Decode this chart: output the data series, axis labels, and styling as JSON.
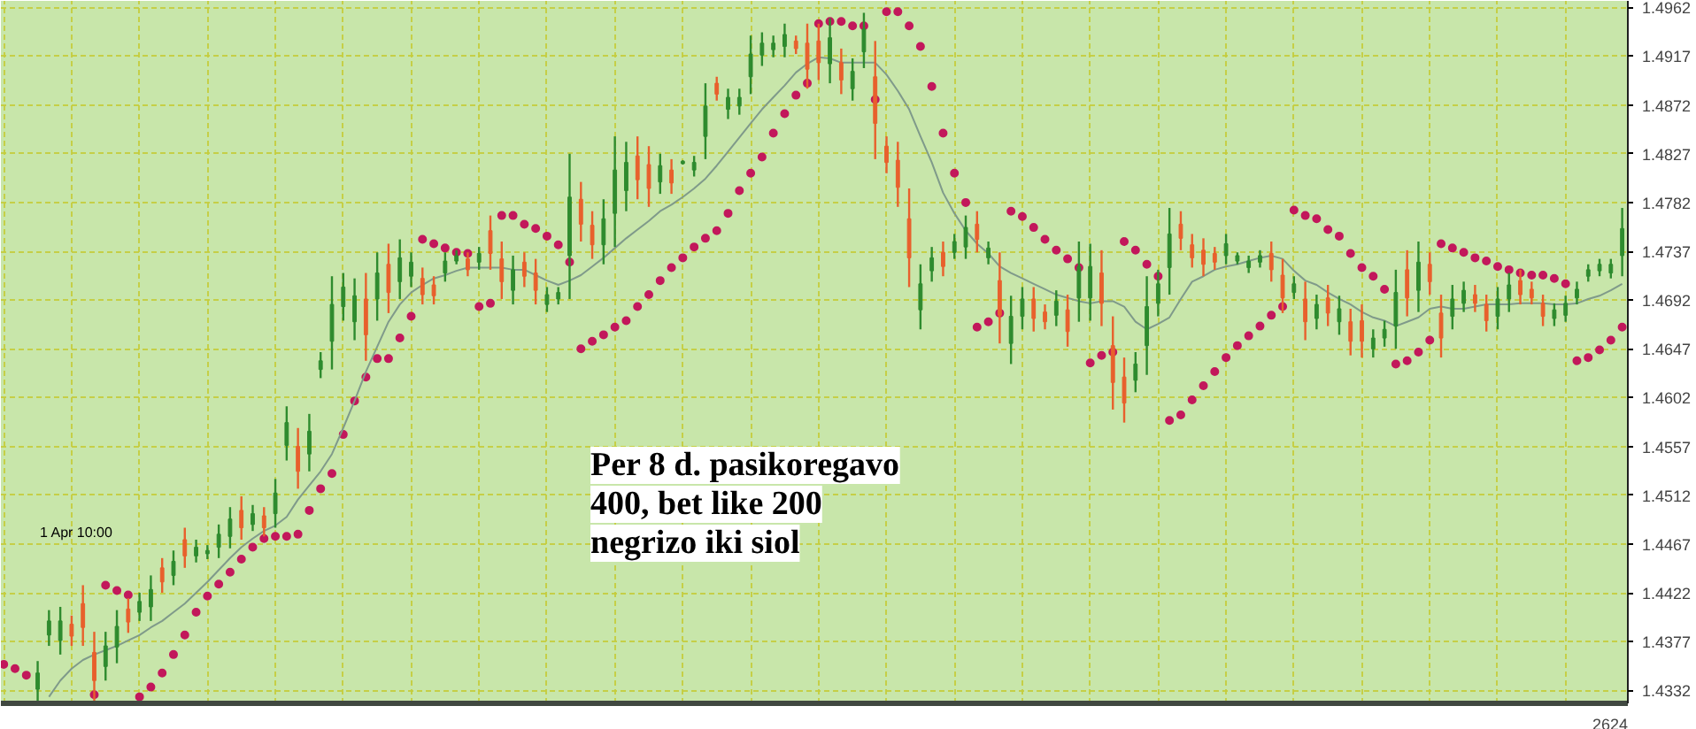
{
  "chart_data": {
    "type": "candlestick",
    "categories": [
      null,
      null,
      null,
      null,
      null,
      null,
      null,
      null,
      null,
      null,
      null,
      null,
      null,
      null,
      null,
      null,
      null,
      null,
      null,
      null,
      null,
      null,
      null,
      null,
      null,
      null,
      null,
      null,
      null,
      null,
      null,
      null,
      null,
      null,
      null,
      null,
      null,
      null,
      null,
      null,
      null,
      null,
      null,
      null,
      null,
      null,
      null,
      null,
      null,
      null,
      null,
      null,
      null,
      null,
      null,
      null,
      null,
      null,
      null,
      null,
      null,
      null,
      null,
      null,
      null,
      null,
      null,
      null,
      null,
      null,
      null,
      null,
      null,
      null,
      null,
      null,
      null,
      null,
      null,
      null,
      null,
      null,
      null,
      null,
      null,
      null,
      null,
      null,
      null,
      null,
      null,
      null,
      null,
      null,
      null,
      null,
      null,
      null,
      null,
      null,
      null,
      null,
      null,
      null,
      null,
      null,
      null,
      null,
      null,
      null,
      null,
      null,
      null,
      null,
      null,
      null,
      null,
      null,
      null,
      null,
      null,
      null,
      null,
      null,
      null,
      null,
      null,
      null,
      null,
      null,
      null,
      null,
      null,
      null,
      null,
      null,
      null,
      null,
      null,
      null,
      null,
      null,
      null,
      null
    ],
    "ylim": [
      1.432,
      1.4968
    ],
    "yticks": [
      1.4332,
      1.4377,
      1.4422,
      1.4467,
      1.4512,
      1.4557,
      1.4602,
      1.4647,
      1.4692,
      1.4737,
      1.4782,
      1.4827,
      1.4872,
      1.4917,
      1.4962
    ],
    "grid": true,
    "tick_labels": "y",
    "annotations": [
      "Per 8 d. pasikoregavo\n400, bet like 200\nnegrizo iki siol",
      "1 Apr 10:00",
      "2624"
    ],
    "series": [
      {
        "ohlc": [
          null,
          null,
          null,
          [
            1.4333,
            1.4359,
            1.4322,
            1.4348
          ],
          [
            1.4383,
            1.4406,
            1.4373,
            1.4396
          ],
          [
            1.4378,
            1.4409,
            1.4365,
            1.4396
          ],
          [
            1.4393,
            1.4401,
            1.4373,
            1.4382
          ],
          [
            1.4412,
            1.4429,
            1.4373,
            1.439
          ],
          [
            1.4367,
            1.4386,
            1.4322,
            1.4341
          ],
          [
            1.4354,
            1.4386,
            1.4341,
            1.4373
          ],
          [
            1.4372,
            1.4406,
            1.4357,
            1.4391
          ],
          [
            1.4407,
            1.4417,
            1.4385,
            1.4395
          ],
          [
            1.4404,
            1.4422,
            1.4396,
            1.4414
          ],
          [
            1.4409,
            1.4438,
            1.4396,
            1.4425
          ],
          [
            1.4445,
            1.4454,
            1.4422,
            1.4432
          ],
          [
            1.4438,
            1.4461,
            1.4429,
            1.4451
          ],
          [
            1.4471,
            1.4482,
            1.4445,
            1.4456
          ],
          [
            1.4456,
            1.4471,
            1.445,
            1.4464
          ],
          [
            1.4458,
            1.4466,
            1.4453,
            1.4461
          ],
          [
            1.4464,
            1.4485,
            1.4454,
            1.4476
          ],
          [
            1.4474,
            1.4501,
            1.4463,
            1.449
          ],
          [
            1.4498,
            1.4511,
            1.4471,
            1.4482
          ],
          [
            1.4485,
            1.4503,
            1.4479,
            1.4495
          ],
          [
            1.4493,
            1.4501,
            1.4474,
            1.4482
          ],
          [
            1.4495,
            1.4527,
            1.4482,
            1.4514
          ],
          [
            1.4558,
            1.4594,
            1.4544,
            1.4579
          ],
          [
            1.4557,
            1.4574,
            1.4518,
            1.4534
          ],
          [
            1.455,
            1.4587,
            1.4534,
            1.4571
          ],
          [
            1.4628,
            1.4644,
            1.462,
            1.4636
          ],
          [
            1.4654,
            1.4714,
            1.4628,
            1.4688
          ],
          [
            1.4686,
            1.4717,
            1.4673,
            1.4704
          ],
          [
            1.4672,
            1.4712,
            1.4655,
            1.4696
          ],
          [
            1.4693,
            1.4717,
            1.4636,
            1.466
          ],
          [
            1.4693,
            1.4736,
            1.4673,
            1.4717
          ],
          [
            1.4725,
            1.4744,
            1.468,
            1.4699
          ],
          [
            1.4709,
            1.4748,
            1.4693,
            1.4731
          ],
          [
            1.4714,
            1.4736,
            1.4704,
            1.4727
          ],
          [
            1.4712,
            1.4722,
            1.4688,
            1.4697
          ],
          [
            1.4706,
            1.4714,
            1.4688,
            1.4696
          ],
          [
            1.4717,
            1.4736,
            1.4709,
            1.4728
          ],
          [
            1.4728,
            1.4738,
            1.4725,
            1.4733
          ],
          [
            1.473,
            1.4736,
            1.4714,
            1.472
          ],
          [
            1.4727,
            1.4741,
            1.472,
            1.4735
          ],
          [
            1.4756,
            1.477,
            1.472,
            1.4735
          ],
          [
            1.473,
            1.4746,
            1.4693,
            1.4709
          ],
          [
            1.4701,
            1.4733,
            1.4688,
            1.472
          ],
          [
            1.4727,
            1.4736,
            1.4704,
            1.4714
          ],
          [
            1.4717,
            1.473,
            1.4688,
            1.4701
          ],
          [
            1.4688,
            1.4704,
            1.4681,
            1.4697
          ],
          [
            1.4693,
            1.4704,
            1.4688,
            1.4699
          ],
          [
            1.4733,
            1.4827,
            1.4693,
            1.4787
          ],
          [
            1.4785,
            1.4801,
            1.4746,
            1.4762
          ],
          [
            1.4761,
            1.4774,
            1.473,
            1.4743
          ],
          [
            1.4743,
            1.4785,
            1.4725,
            1.4767
          ],
          [
            1.4772,
            1.4843,
            1.4741,
            1.4812
          ],
          [
            1.4793,
            1.4838,
            1.4774,
            1.4819
          ],
          [
            1.4825,
            1.4843,
            1.4785,
            1.4803
          ],
          [
            1.4817,
            1.4834,
            1.4778,
            1.4795
          ],
          [
            1.4801,
            1.4827,
            1.479,
            1.4816
          ],
          [
            1.4812,
            1.4822,
            1.479,
            1.48
          ],
          [
            1.4818,
            1.4821,
            1.4817,
            1.482
          ],
          [
            1.4812,
            1.4825,
            1.4806,
            1.4819
          ],
          [
            1.4843,
            1.4892,
            1.4822,
            1.4871
          ],
          [
            1.4892,
            1.4898,
            1.4876,
            1.4882
          ],
          [
            1.4868,
            1.4887,
            1.4859,
            1.4879
          ],
          [
            1.4871,
            1.4887,
            1.4863,
            1.4879
          ],
          [
            1.4898,
            1.4936,
            1.4882,
            1.4919
          ],
          [
            1.4918,
            1.4939,
            1.4908,
            1.4929
          ],
          [
            1.4923,
            1.4936,
            1.4916,
            1.4929
          ],
          [
            1.4926,
            1.4947,
            1.4916,
            1.4937
          ],
          [
            1.4931,
            1.4936,
            1.4919,
            1.4924
          ],
          [
            1.4929,
            1.4947,
            1.4887,
            1.4905
          ],
          [
            1.4931,
            1.4947,
            1.4895,
            1.4911
          ],
          [
            1.491,
            1.4952,
            1.4892,
            1.4934
          ],
          [
            1.4911,
            1.4924,
            1.4882,
            1.4895
          ],
          [
            1.4887,
            1.4915,
            1.4876,
            1.4903
          ],
          [
            1.4921,
            1.4957,
            1.4906,
            1.4942
          ],
          [
            1.4898,
            1.4931,
            1.4822,
            1.4855
          ],
          [
            1.4834,
            1.4843,
            1.4809,
            1.4819
          ],
          [
            1.4821,
            1.4838,
            1.4778,
            1.4796
          ],
          [
            1.4767,
            1.4795,
            1.4704,
            1.4731
          ],
          [
            1.4683,
            1.4725,
            1.4665,
            1.4707
          ],
          [
            1.4719,
            1.4741,
            1.4709,
            1.4731
          ],
          [
            1.4736,
            1.4746,
            1.4714,
            1.4723
          ],
          [
            1.4736,
            1.4753,
            1.473,
            1.4746
          ],
          [
            1.4741,
            1.477,
            1.473,
            1.4759
          ],
          [
            1.4762,
            1.4774,
            1.4736,
            1.4748
          ],
          [
            1.4731,
            1.4746,
            1.4725,
            1.474
          ],
          [
            1.471,
            1.4736,
            1.4652,
            1.4678
          ],
          [
            1.4652,
            1.4696,
            1.4633,
            1.4677
          ],
          [
            1.4677,
            1.4704,
            1.4665,
            1.4693
          ],
          [
            1.4693,
            1.4704,
            1.4663,
            1.4675
          ],
          [
            1.4681,
            1.4688,
            1.4665,
            1.4672
          ],
          [
            1.4678,
            1.4701,
            1.4668,
            1.4691
          ],
          [
            1.4683,
            1.4697,
            1.4649,
            1.4663
          ],
          [
            1.4694,
            1.4746,
            1.4672,
            1.4723
          ],
          [
            1.4694,
            1.4744,
            1.4673,
            1.4723
          ],
          [
            1.4717,
            1.4738,
            1.4668,
            1.4689
          ],
          [
            1.465,
            1.4677,
            1.4591,
            1.4616
          ],
          [
            1.4621,
            1.4639,
            1.4579,
            1.4597
          ],
          [
            1.4618,
            1.4644,
            1.4607,
            1.4633
          ],
          [
            1.465,
            1.4714,
            1.4623,
            1.4686
          ],
          [
            1.4689,
            1.472,
            1.4677,
            1.4707
          ],
          [
            1.4722,
            1.4777,
            1.4697,
            1.4753
          ],
          [
            1.4762,
            1.4774,
            1.4738,
            1.4749
          ],
          [
            1.4743,
            1.4753,
            1.4722,
            1.4731
          ],
          [
            1.4738,
            1.4749,
            1.4714,
            1.4725
          ],
          [
            1.4735,
            1.4741,
            1.472,
            1.4727
          ],
          [
            1.4733,
            1.4753,
            1.4725,
            1.4744
          ],
          [
            1.4728,
            1.4736,
            1.4725,
            1.4733
          ],
          [
            1.4722,
            1.4733,
            1.4717,
            1.4728
          ],
          [
            1.4727,
            1.4738,
            1.4722,
            1.4733
          ],
          [
            1.4735,
            1.4746,
            1.4709,
            1.472
          ],
          [
            1.4715,
            1.473,
            1.468,
            1.4694
          ],
          [
            1.4699,
            1.4714,
            1.4693,
            1.4707
          ],
          [
            1.4693,
            1.4709,
            1.4655,
            1.4672
          ],
          [
            1.4675,
            1.4697,
            1.4665,
            1.4688
          ],
          [
            1.4694,
            1.4706,
            1.4668,
            1.468
          ],
          [
            1.4672,
            1.4696,
            1.466,
            1.4684
          ],
          [
            1.4672,
            1.4684,
            1.4641,
            1.4654
          ],
          [
            1.4673,
            1.4688,
            1.4639,
            1.4654
          ],
          [
            1.4647,
            1.4665,
            1.4639,
            1.4657
          ],
          [
            1.4657,
            1.4673,
            1.4649,
            1.4665
          ],
          [
            1.4668,
            1.472,
            1.4647,
            1.4699
          ],
          [
            1.472,
            1.4738,
            1.4677,
            1.4694
          ],
          [
            1.4701,
            1.4746,
            1.4681,
            1.4727
          ],
          [
            1.4725,
            1.4736,
            1.4697,
            1.4709
          ],
          [
            1.468,
            1.4697,
            1.4639,
            1.4657
          ],
          [
            1.4677,
            1.4706,
            1.4665,
            1.4693
          ],
          [
            1.4689,
            1.4709,
            1.4681,
            1.4701
          ],
          [
            1.4697,
            1.4706,
            1.4681,
            1.4689
          ],
          [
            1.4688,
            1.4697,
            1.4663,
            1.4673
          ],
          [
            1.4677,
            1.4704,
            1.4665,
            1.4693
          ],
          [
            1.4693,
            1.4717,
            1.4681,
            1.4706
          ],
          [
            1.471,
            1.472,
            1.4688,
            1.4697
          ],
          [
            1.4702,
            1.4709,
            1.4688,
            1.4694
          ],
          [
            1.4689,
            1.4697,
            1.4668,
            1.4677
          ],
          [
            1.4675,
            1.4689,
            1.4668,
            1.4683
          ],
          [
            1.4678,
            1.4696,
            1.4672,
            1.4689
          ],
          [
            1.4694,
            1.4709,
            1.4688,
            1.4702
          ],
          [
            1.4714,
            1.4725,
            1.4709,
            1.472
          ],
          [
            1.4719,
            1.473,
            1.4714,
            1.4725
          ],
          [
            1.4717,
            1.473,
            1.4712,
            1.4725
          ],
          [
            1.4733,
            1.4777,
            1.4714,
            1.4758
          ]
        ],
        "colors": [
          null,
          null,
          null,
          "#2e8b2e",
          "#2e8b2e",
          "#2e8b2e",
          "#e8602c",
          "#e8602c",
          "#e8602c",
          "#2e8b2e",
          "#2e8b2e",
          "#e8602c",
          "#2e8b2e",
          "#2e8b2e",
          "#e8602c",
          "#2e8b2e",
          "#e8602c",
          "#2e8b2e",
          "#2e8b2e",
          "#2e8b2e",
          "#2e8b2e",
          "#e8602c",
          "#2e8b2e",
          "#e8602c",
          "#2e8b2e",
          "#2e8b2e",
          "#e8602c",
          "#2e8b2e",
          "#2e8b2e",
          "#2e8b2e",
          "#2e8b2e",
          "#2e8b2e",
          "#e8602c",
          "#2e8b2e",
          "#e8602c",
          "#2e8b2e",
          "#2e8b2e",
          "#e8602c",
          "#e8602c",
          "#2e8b2e",
          "#2e8b2e",
          "#e8602c",
          "#2e8b2e",
          "#e8602c",
          "#e8602c",
          "#2e8b2e",
          "#e8602c",
          "#e8602c",
          "#2e8b2e",
          "#2e8b2e",
          "#2e8b2e",
          "#e8602c",
          "#e8602c",
          "#2e8b2e",
          "#2e8b2e",
          "#2e8b2e",
          "#e8602c",
          "#e8602c",
          "#2e8b2e",
          "#e8602c",
          "#2e8b2e",
          "#2e8b2e",
          "#2e8b2e",
          "#e8602c",
          "#2e8b2e",
          "#2e8b2e",
          "#2e8b2e",
          "#2e8b2e",
          "#2e8b2e",
          "#2e8b2e",
          "#e8602c",
          "#e8602c",
          "#e8602c",
          "#2e8b2e",
          "#e8602c",
          "#2e8b2e",
          "#2e8b2e",
          "#e8602c",
          "#e8602c",
          "#e8602c",
          "#e8602c",
          "#2e8b2e",
          "#2e8b2e",
          "#e8602c",
          "#2e8b2e",
          "#2e8b2e",
          "#e8602c",
          "#2e8b2e",
          "#e8602c",
          "#2e8b2e",
          "#2e8b2e",
          "#e8602c",
          "#e8602c",
          "#2e8b2e",
          "#e8602c",
          "#2e8b2e",
          "#2e8b2e",
          "#e8602c",
          "#e8602c",
          "#e8602c",
          "#2e8b2e",
          "#2e8b2e",
          "#2e8b2e",
          "#2e8b2e",
          "#e8602c",
          "#e8602c",
          "#e8602c",
          "#e8602c",
          "#2e8b2e",
          "#2e8b2e",
          "#2e8b2e",
          "#2e8b2e",
          "#e8602c",
          "#e8602c",
          "#2e8b2e",
          "#e8602c",
          "#2e8b2e",
          "#e8602c",
          "#2e8b2e",
          "#e8602c",
          "#e8602c",
          "#2e8b2e",
          "#2e8b2e",
          "#2e8b2e",
          "#e8602c",
          "#2e8b2e",
          "#e8602c",
          "#e8602c",
          "#2e8b2e",
          "#2e8b2e",
          "#e8602c",
          "#e8602c",
          "#2e8b2e",
          "#2e8b2e",
          "#e8602c",
          "#e8602c",
          "#e8602c",
          "#2e8b2e",
          "#2e8b2e",
          "#2e8b2e",
          "#2e8b2e",
          "#2e8b2e",
          "#2e8b2e",
          "#2e8b2e"
        ]
      },
      {
        "type": "scatter",
        "color": "#c2185b",
        "marker": "circle",
        "values": [
          1.4356,
          1.4352,
          1.4346,
          null,
          null,
          null,
          null,
          null,
          1.4328,
          1.4429,
          1.4424,
          1.442,
          1.4326,
          1.4335,
          1.4348,
          1.4365,
          1.4383,
          1.4404,
          1.4419,
          1.443,
          1.4441,
          1.4453,
          1.4464,
          1.4472,
          1.4474,
          1.4474,
          1.4476,
          1.4498,
          1.4518,
          1.4532,
          1.4568,
          1.4599,
          1.4621,
          1.4638,
          1.4638,
          1.4657,
          1.4677,
          1.4748,
          1.4744,
          1.474,
          1.4736,
          1.4735,
          1.4686,
          1.4689,
          1.477,
          1.477,
          1.4762,
          1.4758,
          1.4751,
          1.4743,
          1.4727,
          1.4647,
          1.4654,
          1.466,
          1.4667,
          1.4673,
          1.4686,
          1.4697,
          1.471,
          1.4722,
          1.4731,
          1.4741,
          1.4749,
          1.4756,
          1.4772,
          1.4793,
          1.4809,
          1.4824,
          1.4846,
          1.4864,
          1.4881,
          1.4892,
          1.4947,
          1.4949,
          1.4949,
          1.4945,
          1.4945,
          1.4877,
          1.4958,
          1.4958,
          1.4945,
          1.4926,
          1.4889,
          1.4846,
          1.4809,
          1.4782,
          1.4667,
          1.4672,
          1.468,
          1.4774,
          1.4769,
          1.4759,
          1.4748,
          1.4738,
          1.473,
          1.4722,
          1.4634,
          1.4641,
          1.4644,
          1.4746,
          1.4738,
          1.4725,
          1.4714,
          1.4581,
          1.4586,
          1.46,
          1.4613,
          1.4626,
          1.4639,
          1.465,
          1.4659,
          1.4668,
          1.4678,
          1.4686,
          1.4775,
          1.477,
          1.4767,
          1.4757,
          1.4751,
          1.4735,
          1.4722,
          1.4714,
          1.4702,
          1.4633,
          1.4636,
          1.4644,
          1.4655,
          1.4744,
          1.474,
          1.4736,
          1.4731,
          1.4728,
          1.4723,
          1.472,
          1.4717,
          1.4715,
          1.4715,
          1.4712,
          1.4707,
          1.4636,
          1.4639,
          1.4646,
          1.4655,
          1.4667
        ]
      },
      {
        "type": "line",
        "color": "#7f9a8a",
        "line_style": "solid",
        "values": [
          null,
          null,
          null,
          null,
          1.4326,
          1.4341,
          1.4352,
          1.436,
          1.4365,
          1.4369,
          1.4373,
          1.4378,
          1.4383,
          1.439,
          1.4396,
          1.4404,
          1.4412,
          1.4422,
          1.4432,
          1.4443,
          1.4454,
          1.4464,
          1.4472,
          1.4479,
          1.4484,
          1.4492,
          1.4508,
          1.4521,
          1.4534,
          1.455,
          1.4574,
          1.4599,
          1.4626,
          1.4649,
          1.4672,
          1.4688,
          1.4699,
          1.4706,
          1.4712,
          1.4715,
          1.4719,
          1.4722,
          1.4722,
          1.4722,
          1.4722,
          1.472,
          1.472,
          1.4715,
          1.471,
          1.4706,
          1.471,
          1.4715,
          1.4723,
          1.4731,
          1.474,
          1.4749,
          1.4757,
          1.4765,
          1.4774,
          1.478,
          1.4787,
          1.4795,
          1.4804,
          1.4816,
          1.4829,
          1.4842,
          1.4855,
          1.4868,
          1.4879,
          1.489,
          1.4902,
          1.491,
          1.4916,
          1.4915,
          1.4911,
          1.4911,
          1.4911,
          1.4911,
          1.49,
          1.4885,
          1.4868,
          1.4843,
          1.4819,
          1.4791,
          1.4772,
          1.4756,
          1.4744,
          1.4735,
          1.4723,
          1.4717,
          1.4712,
          1.4707,
          1.4702,
          1.4697,
          1.4694,
          1.4691,
          1.4689,
          1.4691,
          1.4691,
          1.4686,
          1.4672,
          1.4665,
          1.467,
          1.4676,
          1.4693,
          1.4709,
          1.4714,
          1.472,
          1.4723,
          1.4725,
          1.4728,
          1.4731,
          1.4733,
          1.473,
          1.4719,
          1.471,
          1.4706,
          1.4699,
          1.4693,
          1.4688,
          1.4681,
          1.4676,
          1.4673,
          1.4668,
          1.4672,
          1.4676,
          1.4684,
          1.4686,
          1.4684,
          1.4684,
          1.4686,
          1.4688,
          1.4688,
          1.4688,
          1.4689,
          1.4689,
          1.4689,
          1.4688,
          1.4688,
          1.4689,
          1.4693,
          1.4696,
          1.4701,
          1.4707
        ]
      }
    ]
  }
}
